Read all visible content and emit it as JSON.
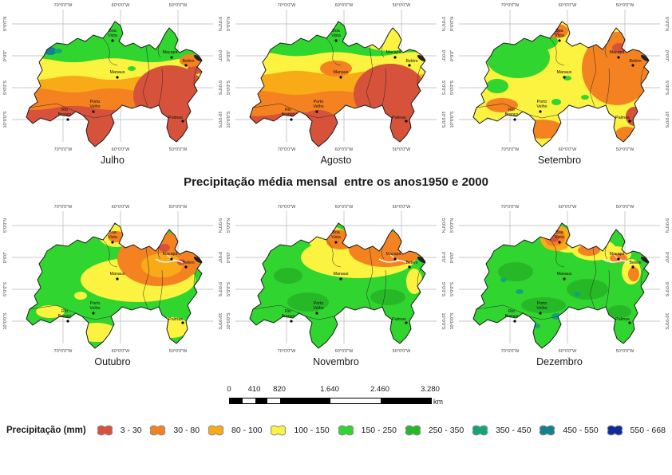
{
  "title": "Precipitação média mensal  entre os anos1950 e 2000",
  "map": {
    "lon_labels": [
      "70°0'0\"W",
      "60°0'0\"W",
      "50°0'0\"W"
    ],
    "lat_labels": [
      "5°0'0\"N",
      "0°0'0\"",
      "5°0'0\"S",
      "10°0'0\"S"
    ],
    "cities": [
      {
        "lines": [
          "Boa",
          "Vista"
        ]
      },
      {
        "lines": [
          "Macapá"
        ]
      },
      {
        "lines": [
          "Belém"
        ]
      },
      {
        "lines": [
          "Manaus"
        ]
      },
      {
        "lines": [
          "Porto",
          "Velho"
        ]
      },
      {
        "lines": [
          "Rio",
          "Branco"
        ]
      },
      {
        "lines": [
          "Palmas"
        ]
      }
    ]
  },
  "colors": {
    "red": "#d6523a",
    "orange": "#f58220",
    "amber": "#f8ab17",
    "yellow": "#fbf340",
    "green": "#31d52f",
    "green2": "#27b827",
    "teal": "#12a578",
    "tealblue": "#13808f",
    "navy": "#0e2b9b"
  },
  "months": [
    {
      "label": "Julho",
      "base": "red",
      "bands": [
        [
          "orange",
          0.69
        ],
        [
          "amber",
          0.55
        ],
        [
          "yellow",
          0.45
        ],
        [
          "green",
          0.31
        ]
      ],
      "blobs": [
        [
          "tealblue",
          62,
          64,
          8,
          5
        ],
        [
          "teal",
          72,
          64,
          5,
          3
        ],
        [
          "red",
          212,
          120,
          46,
          38
        ],
        [
          "red",
          244,
          86,
          10,
          7
        ],
        [
          "orange",
          238,
          76,
          14,
          8
        ],
        [
          "green",
          164,
          86,
          5,
          3
        ]
      ],
      "river": false
    },
    {
      "label": "Agosto",
      "base": "red",
      "bands": [
        [
          "orange",
          0.74
        ],
        [
          "amber",
          0.57
        ],
        [
          "yellow",
          0.41
        ],
        [
          "green",
          0.26
        ]
      ],
      "blobs": [
        [
          "yellow",
          206,
          46,
          38,
          18
        ],
        [
          "orange",
          140,
          86,
          20,
          10
        ],
        [
          "red",
          208,
          118,
          46,
          38
        ],
        [
          "red",
          118,
          158,
          26,
          20
        ]
      ],
      "river": false
    },
    {
      "label": "Setembro",
      "base": "yellow",
      "bands": [],
      "blobs": [
        [
          "green",
          88,
          72,
          40,
          26
        ],
        [
          "green",
          112,
          52,
          26,
          12
        ],
        [
          "green",
          62,
          108,
          14,
          9
        ],
        [
          "orange",
          212,
          86,
          44,
          46
        ],
        [
          "orange",
          137,
          39,
          14,
          9
        ],
        [
          "red",
          136,
          40,
          5,
          4
        ],
        [
          "orange",
          68,
          132,
          20,
          9
        ],
        [
          "orange",
          118,
          162,
          28,
          12
        ],
        [
          "orange",
          224,
          168,
          14,
          9
        ],
        [
          "red",
          215,
          60,
          9,
          6
        ],
        [
          "red",
          198,
          50,
          5,
          4
        ],
        [
          "red",
          234,
          146,
          11,
          12
        ],
        [
          "green",
          150,
          98,
          5,
          3
        ],
        [
          "green",
          136,
          128,
          6,
          4
        ],
        [
          "green",
          172,
          122,
          5,
          3
        ]
      ],
      "river": false
    },
    {
      "label": "Outubro",
      "base": "green",
      "bands": [],
      "blobs": [
        [
          "yellow",
          172,
          98,
          72,
          28
        ],
        [
          "yellow",
          145,
          43,
          22,
          14
        ],
        [
          "yellow",
          120,
          164,
          26,
          12
        ],
        [
          "yellow",
          214,
          158,
          22,
          13
        ],
        [
          "yellow",
          62,
          138,
          18,
          8
        ],
        [
          "yellow",
          100,
          118,
          8,
          5
        ],
        [
          "orange",
          198,
          72,
          52,
          34
        ],
        [
          "amber",
          202,
          80,
          26,
          15
        ],
        [
          "orange",
          145,
          44,
          11,
          7
        ],
        [
          "red",
          205,
          58,
          7,
          5
        ],
        [
          "red",
          226,
          76,
          5,
          4
        ]
      ],
      "river": true
    },
    {
      "label": "Novembro",
      "base": "green",
      "bands": [],
      "blobs": [
        [
          "green2",
          105,
          126,
          26,
          12
        ],
        [
          "green2",
          205,
          120,
          22,
          10
        ],
        [
          "green2",
          80,
          93,
          18,
          10
        ],
        [
          "yellow",
          168,
          70,
          72,
          26
        ],
        [
          "yellow",
          130,
          46,
          26,
          15
        ],
        [
          "yellow",
          238,
          100,
          10,
          16
        ],
        [
          "orange",
          202,
          60,
          46,
          22
        ],
        [
          "orange",
          146,
          50,
          18,
          10
        ],
        [
          "orange",
          142,
          44,
          14,
          9
        ],
        [
          "red",
          178,
          52,
          5,
          4
        ]
      ],
      "river": true
    },
    {
      "label": "Dezembro",
      "base": "green",
      "bands": [],
      "blobs": [
        [
          "green2",
          85,
          88,
          22,
          12
        ],
        [
          "green2",
          175,
          110,
          26,
          13
        ],
        [
          "green2",
          120,
          130,
          28,
          10
        ],
        [
          "green2",
          215,
          138,
          15,
          8
        ],
        [
          "yellow",
          135,
          42,
          12,
          8
        ],
        [
          "yellow",
          152,
          52,
          22,
          12
        ],
        [
          "yellow",
          183,
          60,
          28,
          14
        ],
        [
          "yellow",
          210,
          66,
          20,
          10
        ],
        [
          "yellow",
          230,
          88,
          12,
          16
        ],
        [
          "amber",
          136,
          46,
          20,
          16
        ],
        [
          "orange",
          134,
          45,
          13,
          11
        ],
        [
          "red",
          133,
          46,
          6,
          5
        ],
        [
          "orange",
          177,
          61,
          14,
          7
        ],
        [
          "orange",
          214,
          71,
          11,
          6
        ],
        [
          "orange",
          233,
          91,
          7,
          9
        ],
        [
          "teal",
          90,
          113,
          5,
          3
        ],
        [
          "teal",
          136,
          144,
          6,
          4
        ],
        [
          "teal",
          70,
          98,
          4,
          3
        ],
        [
          "teal",
          162,
          116,
          4,
          3
        ],
        [
          "teal",
          112,
          156,
          4,
          3
        ]
      ],
      "river": true
    },
    {
      "label": null
    }
  ],
  "scalebar": {
    "labels": [
      "0",
      "410",
      "820",
      "1.640",
      "2.460",
      "3.280"
    ],
    "unit": "km"
  },
  "legend": {
    "label": "Precipitação (mm)",
    "classes": [
      {
        "range": "3 - 30",
        "color": "red"
      },
      {
        "range": "30 - 80",
        "color": "orange"
      },
      {
        "range": "80 - 100",
        "color": "amber"
      },
      {
        "range": "100 - 150",
        "color": "yellow"
      },
      {
        "range": "150 - 250",
        "color": "green"
      },
      {
        "range": "250 - 350",
        "color": "green2"
      },
      {
        "range": "350 - 450",
        "color": "teal"
      },
      {
        "range": "450 - 550",
        "color": "tealblue"
      },
      {
        "range": "550 - 668",
        "color": "navy"
      }
    ]
  }
}
